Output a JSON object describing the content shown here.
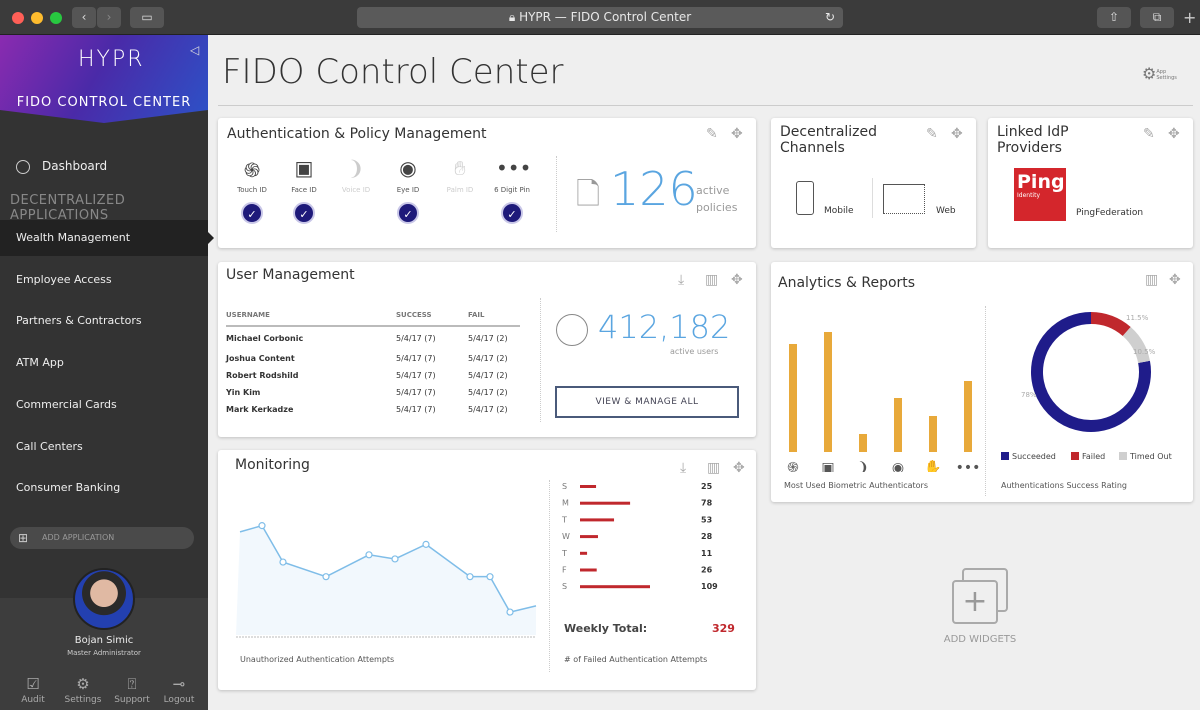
{
  "browser": {
    "title": "HYPR — FIDO Control Center",
    "traffic_colors": [
      "#ff5f57",
      "#febc2e",
      "#28c840"
    ]
  },
  "sidebar": {
    "logo": "HYPR",
    "title": "FIDO CONTROL CENTER",
    "dashboard": "Dashboard",
    "section": "DECENTRALIZED APPLICATIONS",
    "items": [
      {
        "label": "Wealth Management",
        "active": true
      },
      {
        "label": "Employee Access"
      },
      {
        "label": "Partners & Contractors"
      },
      {
        "label": "ATM App"
      },
      {
        "label": "Commercial Cards"
      },
      {
        "label": "Call Centers"
      },
      {
        "label": "Consumer Banking"
      }
    ],
    "add_application": "ADD APPLICATION",
    "user": {
      "name": "Bojan Simic",
      "role": "Master Administrator"
    },
    "footer": [
      {
        "label": "Audit",
        "icon": "audit-icon"
      },
      {
        "label": "Settings",
        "icon": "gear-icon"
      },
      {
        "label": "Support",
        "icon": "help-icon"
      },
      {
        "label": "Logout",
        "icon": "logout-icon"
      }
    ]
  },
  "page": {
    "title": "FIDO Control Center",
    "app_settings": "App Settings"
  },
  "auth": {
    "title": "Authentication & Policy Management",
    "methods": [
      {
        "label": "Touch ID",
        "enabled": true,
        "icon": "fingerprint-icon"
      },
      {
        "label": "Face ID",
        "enabled": true,
        "icon": "face-icon"
      },
      {
        "label": "Voice ID",
        "enabled": false,
        "icon": "voice-icon"
      },
      {
        "label": "Eye ID",
        "enabled": true,
        "icon": "eye-icon"
      },
      {
        "label": "Palm ID",
        "enabled": false,
        "icon": "palm-icon"
      },
      {
        "label": "6 Digit Pin",
        "enabled": true,
        "icon": "pin-icon"
      }
    ],
    "count": "126",
    "count_label1": "active",
    "count_label2": "policies"
  },
  "channels": {
    "title1": "Decentralized",
    "title2": "Channels",
    "mobile": "Mobile",
    "web": "Web"
  },
  "idp": {
    "title1": "Linked IdP",
    "title2": "Providers",
    "logo": "Ping",
    "logo_sub": "Identity",
    "name": "PingFederation",
    "brand_color": "#d4262c"
  },
  "users": {
    "title": "User Management",
    "headers": [
      "USERNAME",
      "SUCCESS",
      "FAIL"
    ],
    "rows": [
      [
        "Michael Corbonic",
        "5/4/17 (7)",
        "5/4/17 (2)"
      ],
      [
        "Joshua Content",
        "5/4/17 (7)",
        "5/4/17 (2)"
      ],
      [
        "Robert Rodshild",
        "5/4/17 (7)",
        "5/4/17 (2)"
      ],
      [
        "Yin Kim",
        "5/4/17 (7)",
        "5/4/17 (2)"
      ],
      [
        "Mark Kerkadze",
        "5/4/17 (7)",
        "5/4/17 (2)"
      ]
    ],
    "count": "412,182",
    "count_label": "active users",
    "button": "VIEW & MANAGE ALL"
  },
  "analytics": {
    "title": "Analytics & Reports",
    "bar_caption": "Most Used Biometric Authenticators",
    "donut_caption": "Authentications Success Rating"
  },
  "monitoring": {
    "title": "Monitoring",
    "line_caption": "Unauthorized Authentication Attempts",
    "bar_caption": "# of Failed Authentication Attempts",
    "total_label": "Weekly Total:",
    "total": "329"
  },
  "add_widgets": "ADD WIDGETS",
  "chart_data": [
    {
      "type": "bar",
      "categories": [
        "Touch ID",
        "Face ID",
        "Voice ID",
        "Eye ID",
        "Palm ID",
        "6 Digit Pin"
      ],
      "values": [
        108,
        120,
        18,
        54,
        36,
        71
      ],
      "color": "#e8a93a",
      "caption": "Most Used Biometric Authenticators"
    },
    {
      "type": "pie",
      "donut": true,
      "categories": [
        "Succeeded",
        "Failed",
        "Timed Out"
      ],
      "values": [
        78,
        11.5,
        10.5
      ],
      "labels": [
        "78%",
        "11.5%",
        "10.5%"
      ],
      "colors": [
        "#1f1c8a",
        "#c0282d",
        "#cfcfcf"
      ],
      "legend": "bottom"
    },
    {
      "type": "area",
      "values": [
        99,
        105,
        70,
        56,
        77,
        73,
        87,
        56,
        56,
        22,
        28
      ],
      "color": "#7fbde8",
      "caption": "Unauthorized Authentication Attempts"
    },
    {
      "type": "bar",
      "orientation": "horizontal",
      "categories": [
        "S",
        "M",
        "T",
        "W",
        "T",
        "F",
        "S"
      ],
      "values": [
        25,
        78,
        53,
        28,
        11,
        26,
        109
      ],
      "color": "#c0282d",
      "caption": "# of Failed Authentication Attempts"
    }
  ]
}
